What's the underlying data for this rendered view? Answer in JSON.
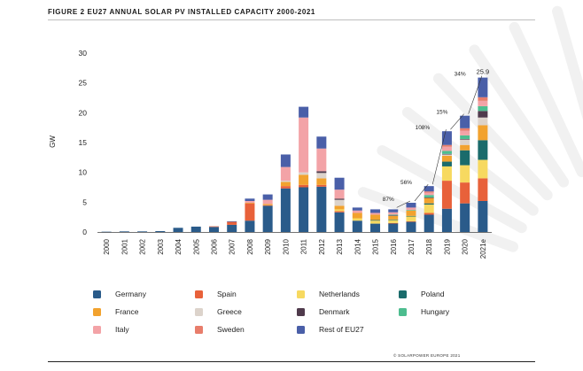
{
  "figure": {
    "title": "FIGURE 2 EU27 ANNUAL SOLAR PV INSTALLED CAPACITY 2000-2021",
    "credit": "© SOLARPOWER EUROPE 2021"
  },
  "colors": {
    "Germany": "#2a5b8a",
    "Spain": "#e8613a",
    "Netherlands": "#f7d960",
    "Poland": "#1a6b6b",
    "France": "#f2a22e",
    "Greece": "#dcd3cb",
    "Denmark": "#4f3a4c",
    "Hungary": "#4dbd8f",
    "Italy": "#f3a3a7",
    "Sweden": "#e87d6b",
    "Rest of EU27": "#4a5fa8"
  },
  "chart_data": {
    "type": "bar",
    "stacked": true,
    "ylabel": "GW",
    "xlabel": "",
    "ylim": [
      0,
      30
    ],
    "yticks": [
      0,
      5,
      10,
      15,
      20,
      25,
      30
    ],
    "grid": false,
    "categories": [
      "2000",
      "2001",
      "2002",
      "2003",
      "2004",
      "2005",
      "2006",
      "2007",
      "2008",
      "2009",
      "2010",
      "2011",
      "2012",
      "2013",
      "2014",
      "2015",
      "2016",
      "2017",
      "2018",
      "2019",
      "2020",
      "2021e"
    ],
    "series": [
      {
        "name": "Germany",
        "values": [
          0.05,
          0.1,
          0.1,
          0.15,
          0.7,
          0.9,
          0.85,
          1.2,
          1.9,
          4.4,
          7.3,
          7.5,
          7.6,
          3.3,
          1.9,
          1.4,
          1.45,
          1.7,
          2.9,
          3.9,
          4.8,
          5.2
        ]
      },
      {
        "name": "Spain",
        "values": [
          0,
          0,
          0,
          0,
          0,
          0,
          0.1,
          0.5,
          2.9,
          0.1,
          0.4,
          0.4,
          0.3,
          0.2,
          0,
          0,
          0.05,
          0.1,
          0.3,
          4.7,
          3.5,
          3.8
        ]
      },
      {
        "name": "Netherlands",
        "values": [
          0,
          0,
          0,
          0,
          0,
          0,
          0,
          0,
          0,
          0,
          0,
          0,
          0,
          0.3,
          0.4,
          0.5,
          0.5,
          0.8,
          1.4,
          2.4,
          2.9,
          3.1
        ]
      },
      {
        "name": "Poland",
        "values": [
          0,
          0,
          0,
          0,
          0,
          0,
          0,
          0,
          0,
          0,
          0,
          0,
          0,
          0,
          0,
          0.1,
          0.1,
          0.1,
          0.2,
          0.8,
          2.5,
          3.3
        ]
      },
      {
        "name": "France",
        "values": [
          0,
          0,
          0,
          0,
          0,
          0,
          0,
          0,
          0.1,
          0.2,
          0.7,
          1.7,
          1.1,
          0.6,
          0.9,
          0.9,
          0.6,
          0.9,
          0.9,
          1.0,
          0.9,
          2.5
        ]
      },
      {
        "name": "Greece",
        "values": [
          0,
          0,
          0,
          0,
          0,
          0,
          0,
          0,
          0,
          0,
          0.2,
          0.4,
          0.9,
          1.0,
          0,
          0,
          0,
          0,
          0,
          0.2,
          0.9,
          1.3
        ]
      },
      {
        "name": "Denmark",
        "values": [
          0,
          0,
          0,
          0,
          0,
          0,
          0,
          0,
          0,
          0,
          0,
          0,
          0.3,
          0.2,
          0,
          0,
          0.1,
          0,
          0.1,
          0.1,
          0.1,
          1.1
        ]
      },
      {
        "name": "Hungary",
        "values": [
          0,
          0,
          0,
          0,
          0,
          0,
          0,
          0,
          0,
          0,
          0,
          0,
          0,
          0,
          0,
          0,
          0.1,
          0.1,
          0.4,
          0.5,
          0.6,
          0.8
        ]
      },
      {
        "name": "Italy",
        "values": [
          0,
          0,
          0,
          0,
          0,
          0,
          0,
          0,
          0.3,
          0.7,
          2.3,
          9.2,
          3.8,
          1.5,
          0.4,
          0.3,
          0.4,
          0.4,
          0.4,
          0.7,
          0.8,
          0.9
        ]
      },
      {
        "name": "Sweden",
        "values": [
          0,
          0,
          0,
          0,
          0,
          0,
          0,
          0,
          0,
          0,
          0,
          0,
          0,
          0,
          0,
          0,
          0,
          0,
          0.2,
          0.3,
          0.4,
          0.6
        ]
      },
      {
        "name": "Rest of EU27",
        "values": [
          0,
          0,
          0,
          0,
          0,
          0,
          0,
          0.1,
          0.4,
          0.9,
          2.1,
          1.8,
          2.0,
          2.0,
          0.5,
          0.6,
          0.5,
          0.8,
          0.9,
          2.3,
          2.1,
          3.3
        ]
      }
    ],
    "totals_label": {
      "category": "2021e",
      "text": "25.9"
    },
    "growth_annotations": [
      {
        "category": "2016",
        "text": "87%"
      },
      {
        "category": "2017",
        "text": "56%"
      },
      {
        "category": "2018",
        "text": "108%"
      },
      {
        "category": "2019",
        "text": "15%"
      },
      {
        "category": "2020",
        "text": "34%"
      }
    ]
  },
  "legend": {
    "placement": "bottom",
    "items": [
      "Germany",
      "Spain",
      "Netherlands",
      "Poland",
      "France",
      "Greece",
      "Denmark",
      "Hungary",
      "Italy",
      "Sweden",
      "Rest of EU27"
    ]
  }
}
